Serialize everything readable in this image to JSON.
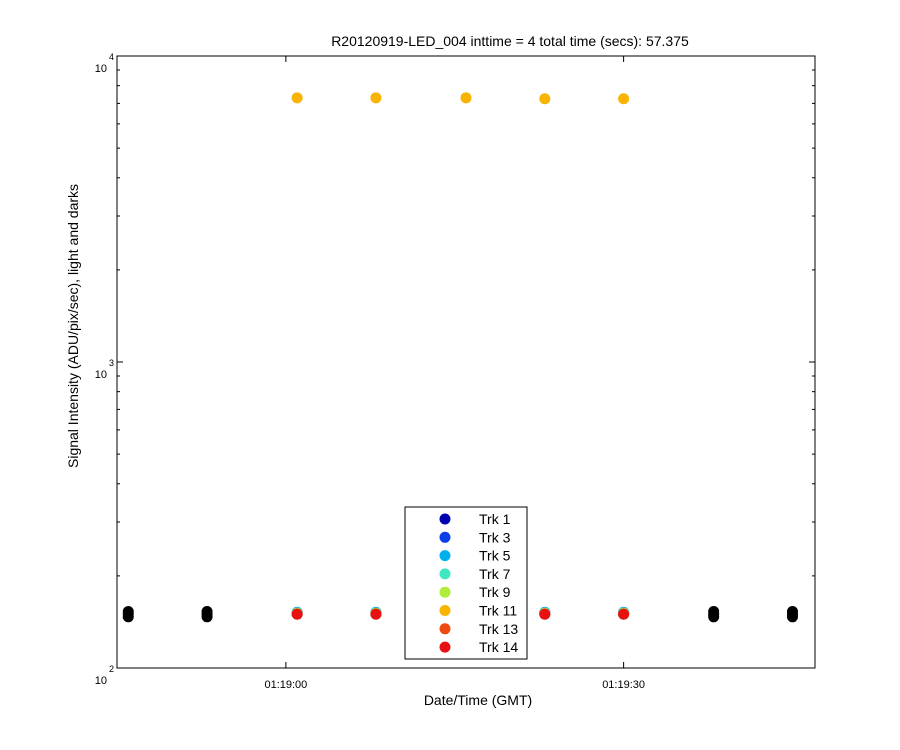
{
  "chart_data": {
    "type": "scatter",
    "title": "R20120919-LED_004 inttime = 4 total time (secs): 57.375",
    "xlabel": "Date/Time (GMT)",
    "ylabel": "Signal Intensity (ADU/pix/sec), light and darks",
    "x_axis": {
      "start": "01:18:45",
      "end": "01:19:47",
      "tick_labels": [
        "01:19:00",
        "01:19:30"
      ]
    },
    "y_axis": {
      "scale": "log",
      "ylim": [
        100,
        10000
      ],
      "tick_labels": [
        {
          "base": "10",
          "exp": "2"
        },
        {
          "base": "10",
          "exp": "3"
        },
        {
          "base": "10",
          "exp": "4"
        }
      ]
    },
    "grid": false,
    "legend_position": "bottom-center",
    "light_times": [
      "01:19:01",
      "01:19:08",
      "01:19:16",
      "01:19:23",
      "01:19:30"
    ],
    "dark_times": [
      "01:18:46",
      "01:18:53",
      "01:19:38",
      "01:19:45"
    ],
    "series": [
      {
        "name": "Trk 1",
        "color": "#0000b0",
        "light": [
          150,
          150,
          150,
          150,
          150
        ],
        "dark": [
          150,
          150,
          150,
          150
        ]
      },
      {
        "name": "Trk 3",
        "color": "#0a3ee8",
        "light": [
          152,
          152,
          152,
          152,
          152
        ],
        "dark": [
          152,
          152,
          152,
          152
        ]
      },
      {
        "name": "Trk 5",
        "color": "#00b0ec",
        "light": [
          152,
          152,
          152,
          152,
          152
        ],
        "dark": [
          152,
          152,
          152,
          152
        ]
      },
      {
        "name": "Trk 7",
        "color": "#3fe8c0",
        "light": [
          151,
          151,
          151,
          151,
          151
        ],
        "dark": [
          151,
          151,
          151,
          151
        ]
      },
      {
        "name": "Trk 9",
        "color": "#b0ec3a",
        "light": [
          151,
          151,
          151,
          151,
          151
        ],
        "dark": [
          151,
          151,
          151,
          151
        ]
      },
      {
        "name": "Trk 11",
        "color": "#f8b400",
        "light": [
          7300,
          7300,
          7300,
          7250,
          7250
        ],
        "dark": [
          150,
          150,
          150,
          150
        ]
      },
      {
        "name": "Trk 13",
        "color": "#f04a10",
        "light": [
          150,
          150,
          150,
          150,
          150
        ],
        "dark": [
          150,
          150,
          150,
          150
        ]
      },
      {
        "name": "Trk 14",
        "color": "#e81010",
        "light": [
          150,
          150,
          150,
          150,
          150
        ],
        "dark": [
          150,
          150,
          150,
          150
        ]
      }
    ],
    "dark_color": "#000000",
    "dark_values": [
      147,
      150,
      153
    ]
  }
}
